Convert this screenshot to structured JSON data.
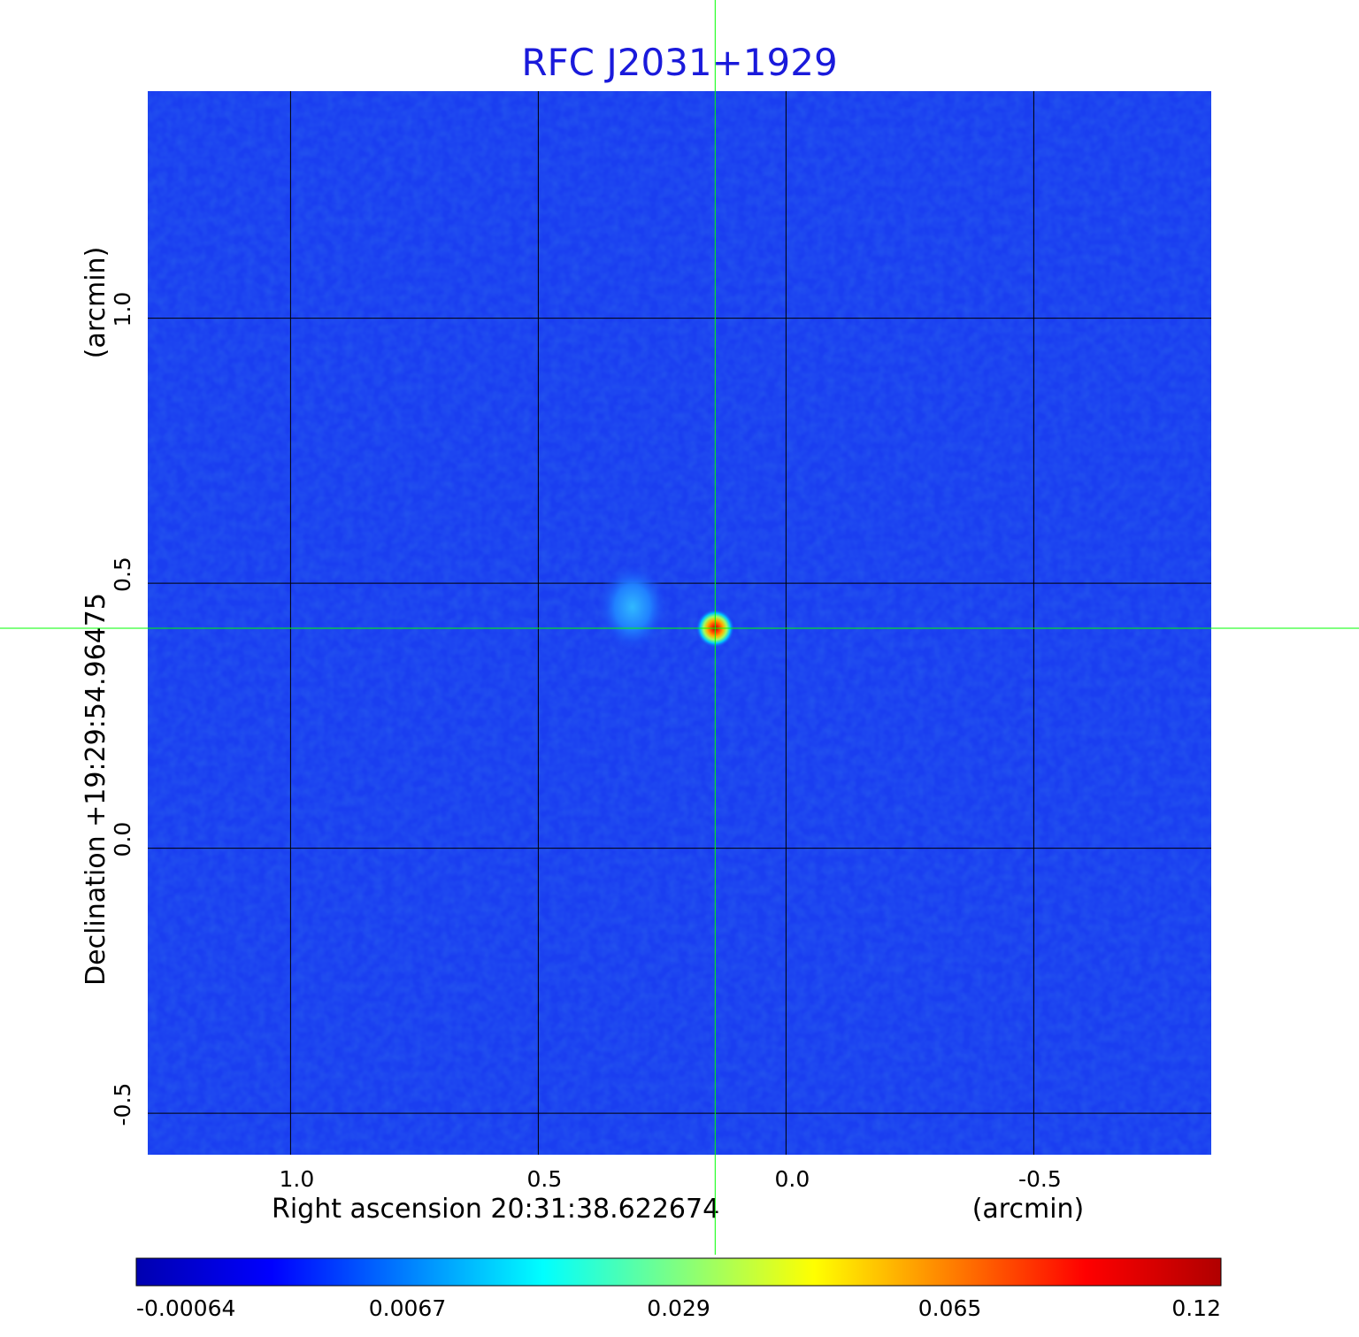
{
  "chart_data": {
    "type": "heatmap",
    "title": "RFC J2031+1929",
    "xlabel": "Right ascension  20:31:38.622674",
    "xunit": "(arcmin)",
    "ylabel": "Declination  +19:29:54.96475",
    "yunit": "(arcmin)",
    "xlim": [
      1.29,
      -0.86
    ],
    "ylim": [
      -0.58,
      1.43
    ],
    "x_ticks": [
      {
        "value": 1.0,
        "label": "1.0"
      },
      {
        "value": 0.5,
        "label": "0.5"
      },
      {
        "value": 0.0,
        "label": "0.0"
      },
      {
        "value": -0.5,
        "label": "-0.5"
      }
    ],
    "y_ticks": [
      {
        "value": 1.0,
        "label": "1.0"
      },
      {
        "value": 0.5,
        "label": "0.5"
      },
      {
        "value": 0.0,
        "label": "0.0"
      },
      {
        "value": -0.5,
        "label": "-0.5"
      }
    ],
    "grid": true,
    "crosshair": {
      "x": 0.143,
      "y": 0.415
    },
    "sources": [
      {
        "x": 0.143,
        "y": 0.415,
        "peak": 0.12,
        "width": 0.03
      },
      {
        "x": 0.31,
        "y": 0.455,
        "peak": 0.012,
        "width": 0.045
      }
    ],
    "colorbar": {
      "ticks": [
        "-0.00064",
        "0.0067",
        "0.029",
        "0.065",
        "0.12"
      ],
      "colormap": [
        "#0000b0",
        "#0000ff",
        "#0080ff",
        "#00ffff",
        "#80ff80",
        "#ffff00",
        "#ff8000",
        "#ff0000",
        "#b00000"
      ]
    },
    "colors": {
      "background": "#1a3ef0",
      "grid": "#000000",
      "crosshair": "#00ff00",
      "title": "#1a1adb"
    }
  }
}
